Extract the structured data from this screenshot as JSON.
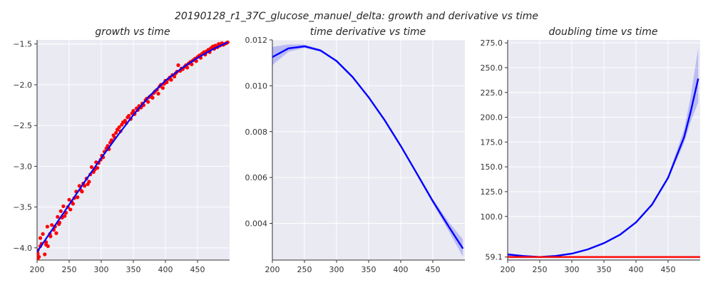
{
  "chart_data": {
    "suptitle": "20190128_r1_37C_glucose_manuel_delta: growth and derivative vs time",
    "panels": [
      {
        "type": "scatter",
        "title": "growth vs time",
        "xlabel": "",
        "ylabel": "",
        "xlim": [
          200,
          500
        ],
        "ylim": [
          -4.15,
          -1.45
        ],
        "xticks": [
          200,
          250,
          300,
          350,
          400,
          450
        ],
        "yticks": [
          -4.0,
          -3.5,
          -3.0,
          -2.5,
          -2.0,
          -1.5
        ],
        "ytick_labels": [
          "−4.0",
          "−3.5",
          "−3.0",
          "−2.5",
          "−2.0",
          "−1.5"
        ],
        "grid": true,
        "series": [
          {
            "kind": "points",
            "color": "#ff0000",
            "x": [
              201,
              201,
              201,
              203,
              205,
              205,
              207,
              209,
              212,
              214,
              214,
              216,
              217,
              220,
              221,
              223,
              226,
              228,
              230,
              232,
              234,
              235,
              237,
              239,
              241,
              243,
              245,
              248,
              250,
              252,
              254,
              256,
              258,
              261,
              263,
              266,
              268,
              270,
              272,
              274,
              277,
              279,
              281,
              283,
              285,
              288,
              290,
              292,
              294,
              296,
              299,
              301,
              303,
              305,
              308,
              310,
              312,
              314,
              316,
              319,
              321,
              323,
              325,
              328,
              330,
              332,
              334,
              337,
              339,
              341,
              343,
              346,
              348,
              350,
              352,
              355,
              357,
              359,
              362,
              364,
              366,
              369,
              371,
              373,
              375,
              378,
              380,
              382,
              384,
              387,
              389,
              391,
              393,
              396,
              398,
              400,
              402,
              405,
              407,
              409,
              411,
              414,
              416,
              418,
              420,
              423,
              425,
              427,
              430,
              432,
              434,
              436,
              439,
              441,
              443,
              446,
              448,
              450,
              453,
              455,
              457,
              460,
              462,
              464,
              467,
              469,
              471,
              474,
              476,
              478,
              481,
              483,
              485,
              488,
              490,
              492,
              495,
              497
            ],
            "y": [
              -4.03,
              -4.07,
              -4.14,
              -4.11,
              -3.88,
              -3.98,
              -3.95,
              -3.83,
              -4.08,
              -3.93,
              -3.96,
              -3.74,
              -3.98,
              -3.83,
              -3.86,
              -3.72,
              -3.78,
              -3.74,
              -3.82,
              -3.62,
              -3.71,
              -3.69,
              -3.55,
              -3.63,
              -3.49,
              -3.61,
              -3.57,
              -3.5,
              -3.41,
              -3.53,
              -3.44,
              -3.46,
              -3.39,
              -3.31,
              -3.38,
              -3.24,
              -3.29,
              -3.31,
              -3.21,
              -3.24,
              -3.15,
              -3.22,
              -3.19,
              -3.1,
              -3.01,
              -3.07,
              -3.04,
              -2.95,
              -3.02,
              -2.96,
              -2.92,
              -2.87,
              -2.89,
              -2.82,
              -2.78,
              -2.75,
              -2.79,
              -2.71,
              -2.68,
              -2.62,
              -2.65,
              -2.59,
              -2.55,
              -2.52,
              -2.57,
              -2.49,
              -2.46,
              -2.44,
              -2.47,
              -2.4,
              -2.38,
              -2.42,
              -2.35,
              -2.32,
              -2.36,
              -2.29,
              -2.31,
              -2.26,
              -2.28,
              -2.23,
              -2.25,
              -2.19,
              -2.17,
              -2.21,
              -2.15,
              -2.13,
              -2.16,
              -2.1,
              -2.08,
              -2.06,
              -2.11,
              -2.02,
              -2.0,
              -2.04,
              -1.99,
              -1.95,
              -1.97,
              -1.93,
              -1.91,
              -1.94,
              -1.88,
              -1.9,
              -1.86,
              -1.84,
              -1.76,
              -1.83,
              -1.8,
              -1.81,
              -1.78,
              -1.76,
              -1.79,
              -1.74,
              -1.72,
              -1.75,
              -1.7,
              -1.68,
              -1.71,
              -1.66,
              -1.64,
              -1.67,
              -1.62,
              -1.6,
              -1.63,
              -1.59,
              -1.57,
              -1.6,
              -1.55,
              -1.53,
              -1.56,
              -1.52,
              -1.54,
              -1.5,
              -1.52,
              -1.49,
              -1.51,
              -1.5,
              -1.49,
              -1.48
            ]
          },
          {
            "kind": "fit",
            "color": "#0000ff",
            "x": [
              200,
              225,
              250,
              275,
              300,
              325,
              350,
              375,
              400,
              425,
              450,
              475,
              497
            ],
            "y": [
              -4.05,
              -3.76,
              -3.47,
              -3.18,
              -2.9,
              -2.63,
              -2.37,
              -2.14,
              -1.95,
              -1.8,
              -1.67,
              -1.56,
              -1.48
            ]
          }
        ]
      },
      {
        "type": "line",
        "title": "time derivative vs time",
        "xlabel": "",
        "ylabel": "",
        "xlim": [
          200,
          500
        ],
        "ylim": [
          0.0024,
          0.012
        ],
        "xticks": [
          200,
          250,
          300,
          350,
          400,
          450
        ],
        "yticks": [
          0.004,
          0.006,
          0.008,
          0.01,
          0.012
        ],
        "ytick_labels": [
          "0.004",
          "0.006",
          "0.008",
          "0.010",
          "0.012"
        ],
        "grid": true,
        "series": [
          {
            "kind": "mean_with_band",
            "color": "#0000ff",
            "x": [
              200,
              225,
              250,
              275,
              300,
              325,
              350,
              375,
              400,
              425,
              450,
              475,
              497
            ],
            "y": [
              0.01125,
              0.01163,
              0.01172,
              0.01154,
              0.01108,
              0.01038,
              0.0095,
              0.0085,
              0.00738,
              0.00618,
              0.00497,
              0.00385,
              0.0029
            ],
            "lower": [
              0.0109,
              0.01148,
              0.01165,
              0.01148,
              0.01104,
              0.01035,
              0.00946,
              0.00845,
              0.00732,
              0.00611,
              0.00487,
              0.00365,
              0.00255
            ],
            "upper": [
              0.0117,
              0.0118,
              0.0118,
              0.0116,
              0.01112,
              0.01041,
              0.00954,
              0.00855,
              0.00744,
              0.00625,
              0.00507,
              0.00405,
              0.0033
            ]
          }
        ]
      },
      {
        "type": "line",
        "title": "doubling time vs time",
        "xlabel": "",
        "ylabel": "",
        "xlim": [
          200,
          500
        ],
        "ylim": [
          56,
          278
        ],
        "xticks": [
          200,
          250,
          300,
          350,
          400,
          450
        ],
        "yticks": [
          59.1,
          100.0,
          125.0,
          150.0,
          175.0,
          200.0,
          225.0,
          250.0,
          275.0
        ],
        "ytick_labels": [
          "59.1",
          "100.0",
          "125.0",
          "150.0",
          "175.0",
          "200.0",
          "225.0",
          "250.0",
          "275.0"
        ],
        "grid": true,
        "series": [
          {
            "kind": "mean_with_band",
            "color": "#0000ff",
            "x": [
              200,
              225,
              250,
              275,
              300,
              325,
              350,
              375,
              400,
              425,
              450,
              475,
              485,
              497
            ],
            "y": [
              61.6,
              60.1,
              59.1,
              60.2,
              62.5,
              66.8,
              73.0,
              81.5,
              94.0,
              112.0,
              139.0,
              180.0,
              205.0,
              239.0
            ],
            "lower": [
              60.2,
              59.5,
              58.8,
              59.9,
              62.2,
              66.5,
              72.7,
              81.1,
              93.4,
              111.0,
              137.0,
              174.0,
              195.0,
              215.0
            ],
            "upper": [
              63.0,
              60.7,
              59.4,
              60.5,
              62.8,
              67.1,
              73.3,
              81.9,
              94.6,
              113.0,
              141.0,
              188.0,
              220.0,
              270.0
            ]
          },
          {
            "kind": "hline",
            "color": "#ff0000",
            "y": 59.1
          }
        ]
      }
    ]
  }
}
